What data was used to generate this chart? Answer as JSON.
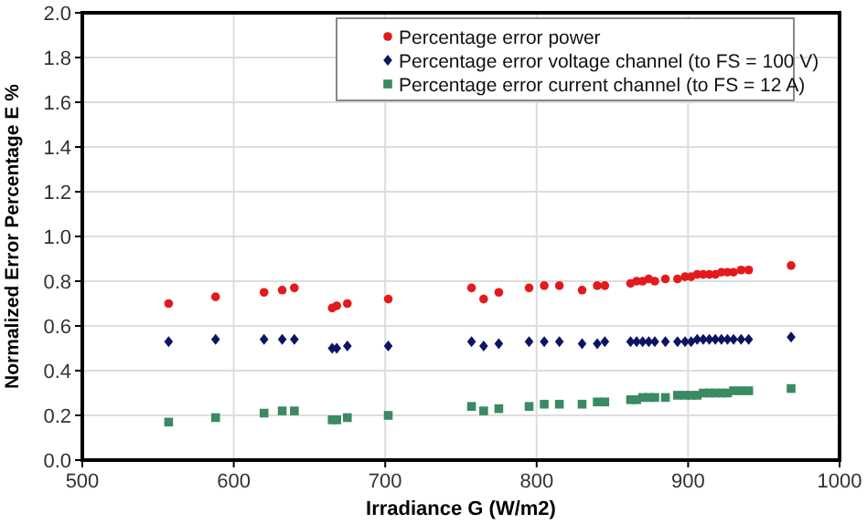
{
  "chart_data": {
    "type": "scatter",
    "xlabel": "Irradiance G (W/m2)",
    "ylabel": "Normalized Error Percentage E %",
    "x": [
      557,
      588,
      620,
      632,
      640,
      665,
      668,
      675,
      702,
      757,
      765,
      775,
      795,
      805,
      815,
      830,
      840,
      845,
      862,
      866,
      870,
      874,
      878,
      885,
      893,
      898,
      902,
      906,
      910,
      914,
      918,
      922,
      926,
      930,
      935,
      940,
      968
    ],
    "series": [
      {
        "name": "Percentage error power",
        "color": "#e31a1c",
        "marker": "circle",
        "values": [
          0.7,
          0.73,
          0.75,
          0.76,
          0.77,
          0.68,
          0.69,
          0.7,
          0.72,
          0.77,
          0.72,
          0.75,
          0.77,
          0.78,
          0.78,
          0.76,
          0.78,
          0.78,
          0.79,
          0.8,
          0.8,
          0.81,
          0.8,
          0.81,
          0.81,
          0.82,
          0.82,
          0.83,
          0.83,
          0.83,
          0.83,
          0.84,
          0.84,
          0.84,
          0.85,
          0.85,
          0.87
        ]
      },
      {
        "name": "Percentage error voltage channel (to FS = 100 V)",
        "color": "#0d1463",
        "marker": "diamond",
        "values": [
          0.53,
          0.54,
          0.54,
          0.54,
          0.54,
          0.5,
          0.5,
          0.51,
          0.51,
          0.53,
          0.51,
          0.52,
          0.53,
          0.53,
          0.53,
          0.52,
          0.52,
          0.53,
          0.53,
          0.53,
          0.53,
          0.53,
          0.53,
          0.53,
          0.53,
          0.53,
          0.53,
          0.54,
          0.54,
          0.54,
          0.54,
          0.54,
          0.54,
          0.54,
          0.54,
          0.54,
          0.55
        ]
      },
      {
        "name": "Percentage error current channel (to FS = 12 A)",
        "color": "#3a8a63",
        "marker": "square",
        "values": [
          0.17,
          0.19,
          0.21,
          0.22,
          0.22,
          0.18,
          0.18,
          0.19,
          0.2,
          0.24,
          0.22,
          0.23,
          0.24,
          0.25,
          0.25,
          0.25,
          0.26,
          0.26,
          0.27,
          0.27,
          0.28,
          0.28,
          0.28,
          0.28,
          0.29,
          0.29,
          0.29,
          0.29,
          0.3,
          0.3,
          0.3,
          0.3,
          0.3,
          0.31,
          0.31,
          0.31,
          0.32
        ]
      }
    ],
    "xlim": [
      500,
      1000
    ],
    "xticks": [
      500,
      600,
      700,
      800,
      900,
      1000
    ],
    "ylim": [
      0,
      2
    ],
    "yticks": [
      {
        "value": 0,
        "label": "0.0"
      },
      0.2,
      0.4,
      0.6,
      0.8,
      {
        "value": 1,
        "label": "1.0"
      },
      1.2,
      1.4,
      1.6,
      1.8,
      {
        "value": 2,
        "label": "2.0"
      }
    ],
    "grid": true,
    "legend": "top right"
  }
}
